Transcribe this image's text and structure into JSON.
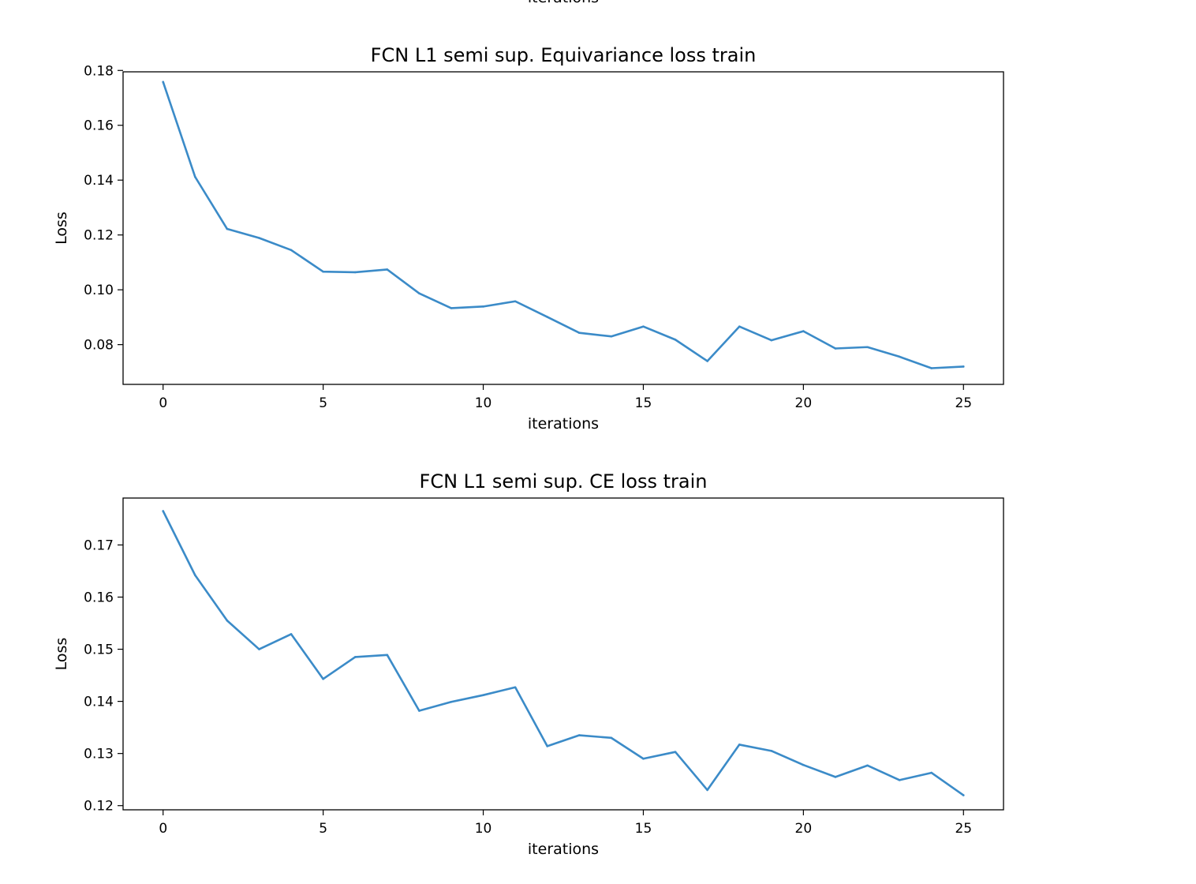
{
  "top_fragment": {
    "label": "iterations"
  },
  "chart_data": [
    {
      "type": "line",
      "title": "FCN L1 semi sup. Equivariance loss train",
      "xlabel": "iterations",
      "ylabel": "Loss",
      "xlim": [
        -1.25,
        26.25
      ],
      "ylim": [
        0.0655,
        0.1795
      ],
      "xticks": [
        0,
        5,
        10,
        15,
        20,
        25
      ],
      "xtick_labels": [
        "0",
        "5",
        "10",
        "15",
        "20",
        "25"
      ],
      "yticks": [
        0.08,
        0.1,
        0.12,
        0.14,
        0.16,
        0.18
      ],
      "ytick_labels": [
        "0.08",
        "0.10",
        "0.12",
        "0.14",
        "0.16",
        "0.18"
      ],
      "grid": false,
      "series": [
        {
          "color": "#3b8bc8",
          "x": [
            0,
            1,
            2,
            3,
            4,
            5,
            6,
            7,
            8,
            9,
            10,
            11,
            12,
            13,
            14,
            15,
            16,
            17,
            18,
            19,
            20,
            21,
            22,
            23,
            24,
            25
          ],
          "y": [
            0.1758,
            0.1412,
            0.1222,
            0.1189,
            0.1145,
            0.1066,
            0.1064,
            0.1074,
            0.0987,
            0.0933,
            0.0939,
            0.0958,
            0.0901,
            0.0843,
            0.083,
            0.0866,
            0.0818,
            0.074,
            0.0866,
            0.0816,
            0.0849,
            0.0786,
            0.0791,
            0.0756,
            0.0714,
            0.072
          ]
        }
      ]
    },
    {
      "type": "line",
      "title": "FCN L1 semi sup. CE loss train",
      "xlabel": "iterations",
      "ylabel": "Loss",
      "xlim": [
        -1.25,
        26.25
      ],
      "ylim": [
        0.1192,
        0.179
      ],
      "xticks": [
        0,
        5,
        10,
        15,
        20,
        25
      ],
      "xtick_labels": [
        "0",
        "5",
        "10",
        "15",
        "20",
        "25"
      ],
      "yticks": [
        0.12,
        0.13,
        0.14,
        0.15,
        0.16,
        0.17
      ],
      "ytick_labels": [
        "0.12",
        "0.13",
        "0.14",
        "0.15",
        "0.16",
        "0.17"
      ],
      "grid": false,
      "series": [
        {
          "color": "#3b8bc8",
          "x": [
            0,
            1,
            2,
            3,
            4,
            5,
            6,
            7,
            8,
            9,
            10,
            11,
            12,
            13,
            14,
            15,
            16,
            17,
            18,
            19,
            20,
            21,
            22,
            23,
            24,
            25
          ],
          "y": [
            0.1765,
            0.1642,
            0.1555,
            0.15,
            0.1529,
            0.1443,
            0.1485,
            0.1489,
            0.1382,
            0.1399,
            0.1412,
            0.1427,
            0.1314,
            0.1335,
            0.133,
            0.129,
            0.1303,
            0.123,
            0.1317,
            0.1305,
            0.1278,
            0.1255,
            0.1277,
            0.1249,
            0.1263,
            0.122
          ]
        }
      ]
    }
  ]
}
